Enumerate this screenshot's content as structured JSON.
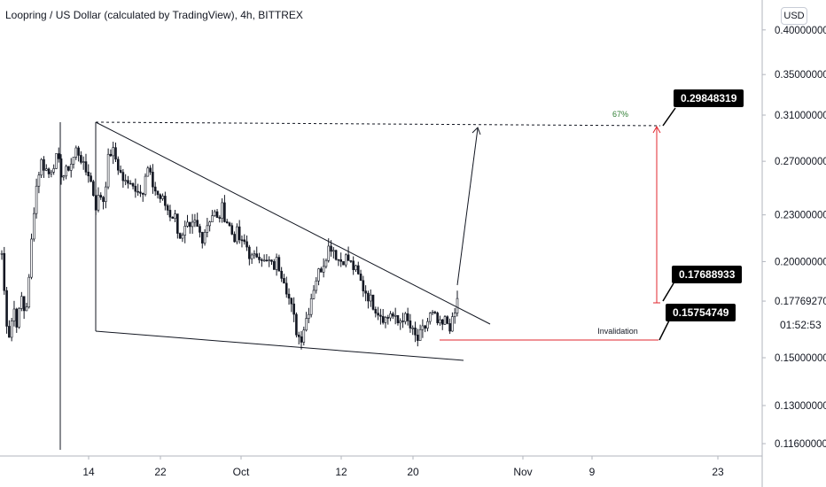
{
  "header": {
    "title": "Loopring / US Dollar (calculated by TradingView), 4h, BITTREX",
    "currency_button": "USD"
  },
  "annotations": {
    "target_price": "0.29848319",
    "current_price_label": "0.17688933",
    "invalidation_price": "0.15754749",
    "percent_move": "67%",
    "invalidation_text": "Invalidation",
    "countdown": "01:52:53"
  },
  "chart_data": {
    "type": "candlestick",
    "title": "Loopring / US Dollar (calculated by TradingView), 4h, BITTREX",
    "y_scale": "log",
    "ylim": [
      0.112,
      0.45
    ],
    "y_ticks": [
      {
        "value": 0.116,
        "label": "0.11600000"
      },
      {
        "value": 0.13,
        "label": "0.13000000"
      },
      {
        "value": 0.15,
        "label": "0.15000000"
      },
      {
        "value": 0.1776927,
        "label": "0.17769270"
      },
      {
        "value": 0.2,
        "label": "0.20000000"
      },
      {
        "value": 0.23,
        "label": "0.23000000"
      },
      {
        "value": 0.27,
        "label": "0.27000000"
      },
      {
        "value": 0.31,
        "label": "0.31000000"
      },
      {
        "value": 0.35,
        "label": "0.35000000"
      },
      {
        "value": 0.4,
        "label": "0.40000000"
      }
    ],
    "x_ticks": [
      "14",
      "22",
      "Oct",
      "12",
      "20",
      "Nov",
      "9",
      "23"
    ],
    "price_path": [
      [
        0.205,
        0.17,
        0.16,
        0.175,
        0.165,
        0.18,
        0.17,
        0.19,
        0.23,
        0.255,
        0.27,
        0.265,
        0.26,
        0.268,
        0.272,
        0.262,
        0.258,
        0.266,
        0.27,
        0.28,
        0.275,
        0.262
      ],
      [
        0.262,
        0.25,
        0.236,
        0.245,
        0.24,
        0.27,
        0.28,
        0.272,
        0.262,
        0.255,
        0.25,
        0.258,
        0.247,
        0.252,
        0.245,
        0.265,
        0.255,
        0.248,
        0.243,
        0.24,
        0.235,
        0.23
      ],
      [
        0.23,
        0.218,
        0.214,
        0.222,
        0.218,
        0.225,
        0.22,
        0.215,
        0.222,
        0.228,
        0.232,
        0.225,
        0.235,
        0.228,
        0.222,
        0.215,
        0.218,
        0.21,
        0.212,
        0.205,
        0.2,
        0.205
      ],
      [
        0.205,
        0.198,
        0.2,
        0.196,
        0.2,
        0.195,
        0.19,
        0.18,
        0.172,
        0.163,
        0.158,
        0.165,
        0.172,
        0.182,
        0.19,
        0.195,
        0.2,
        0.208,
        0.21,
        0.205,
        0.2,
        0.202
      ],
      [
        0.202,
        0.198,
        0.195,
        0.19,
        0.185,
        0.182,
        0.178,
        0.175,
        0.172,
        0.17,
        0.168,
        0.172,
        0.168,
        0.166,
        0.17,
        0.168,
        0.164,
        0.16,
        0.158,
        0.162,
        0.165,
        0.17
      ],
      [
        0.17,
        0.166,
        0.164,
        0.168,
        0.165,
        0.167,
        0.178
      ]
    ]
  }
}
